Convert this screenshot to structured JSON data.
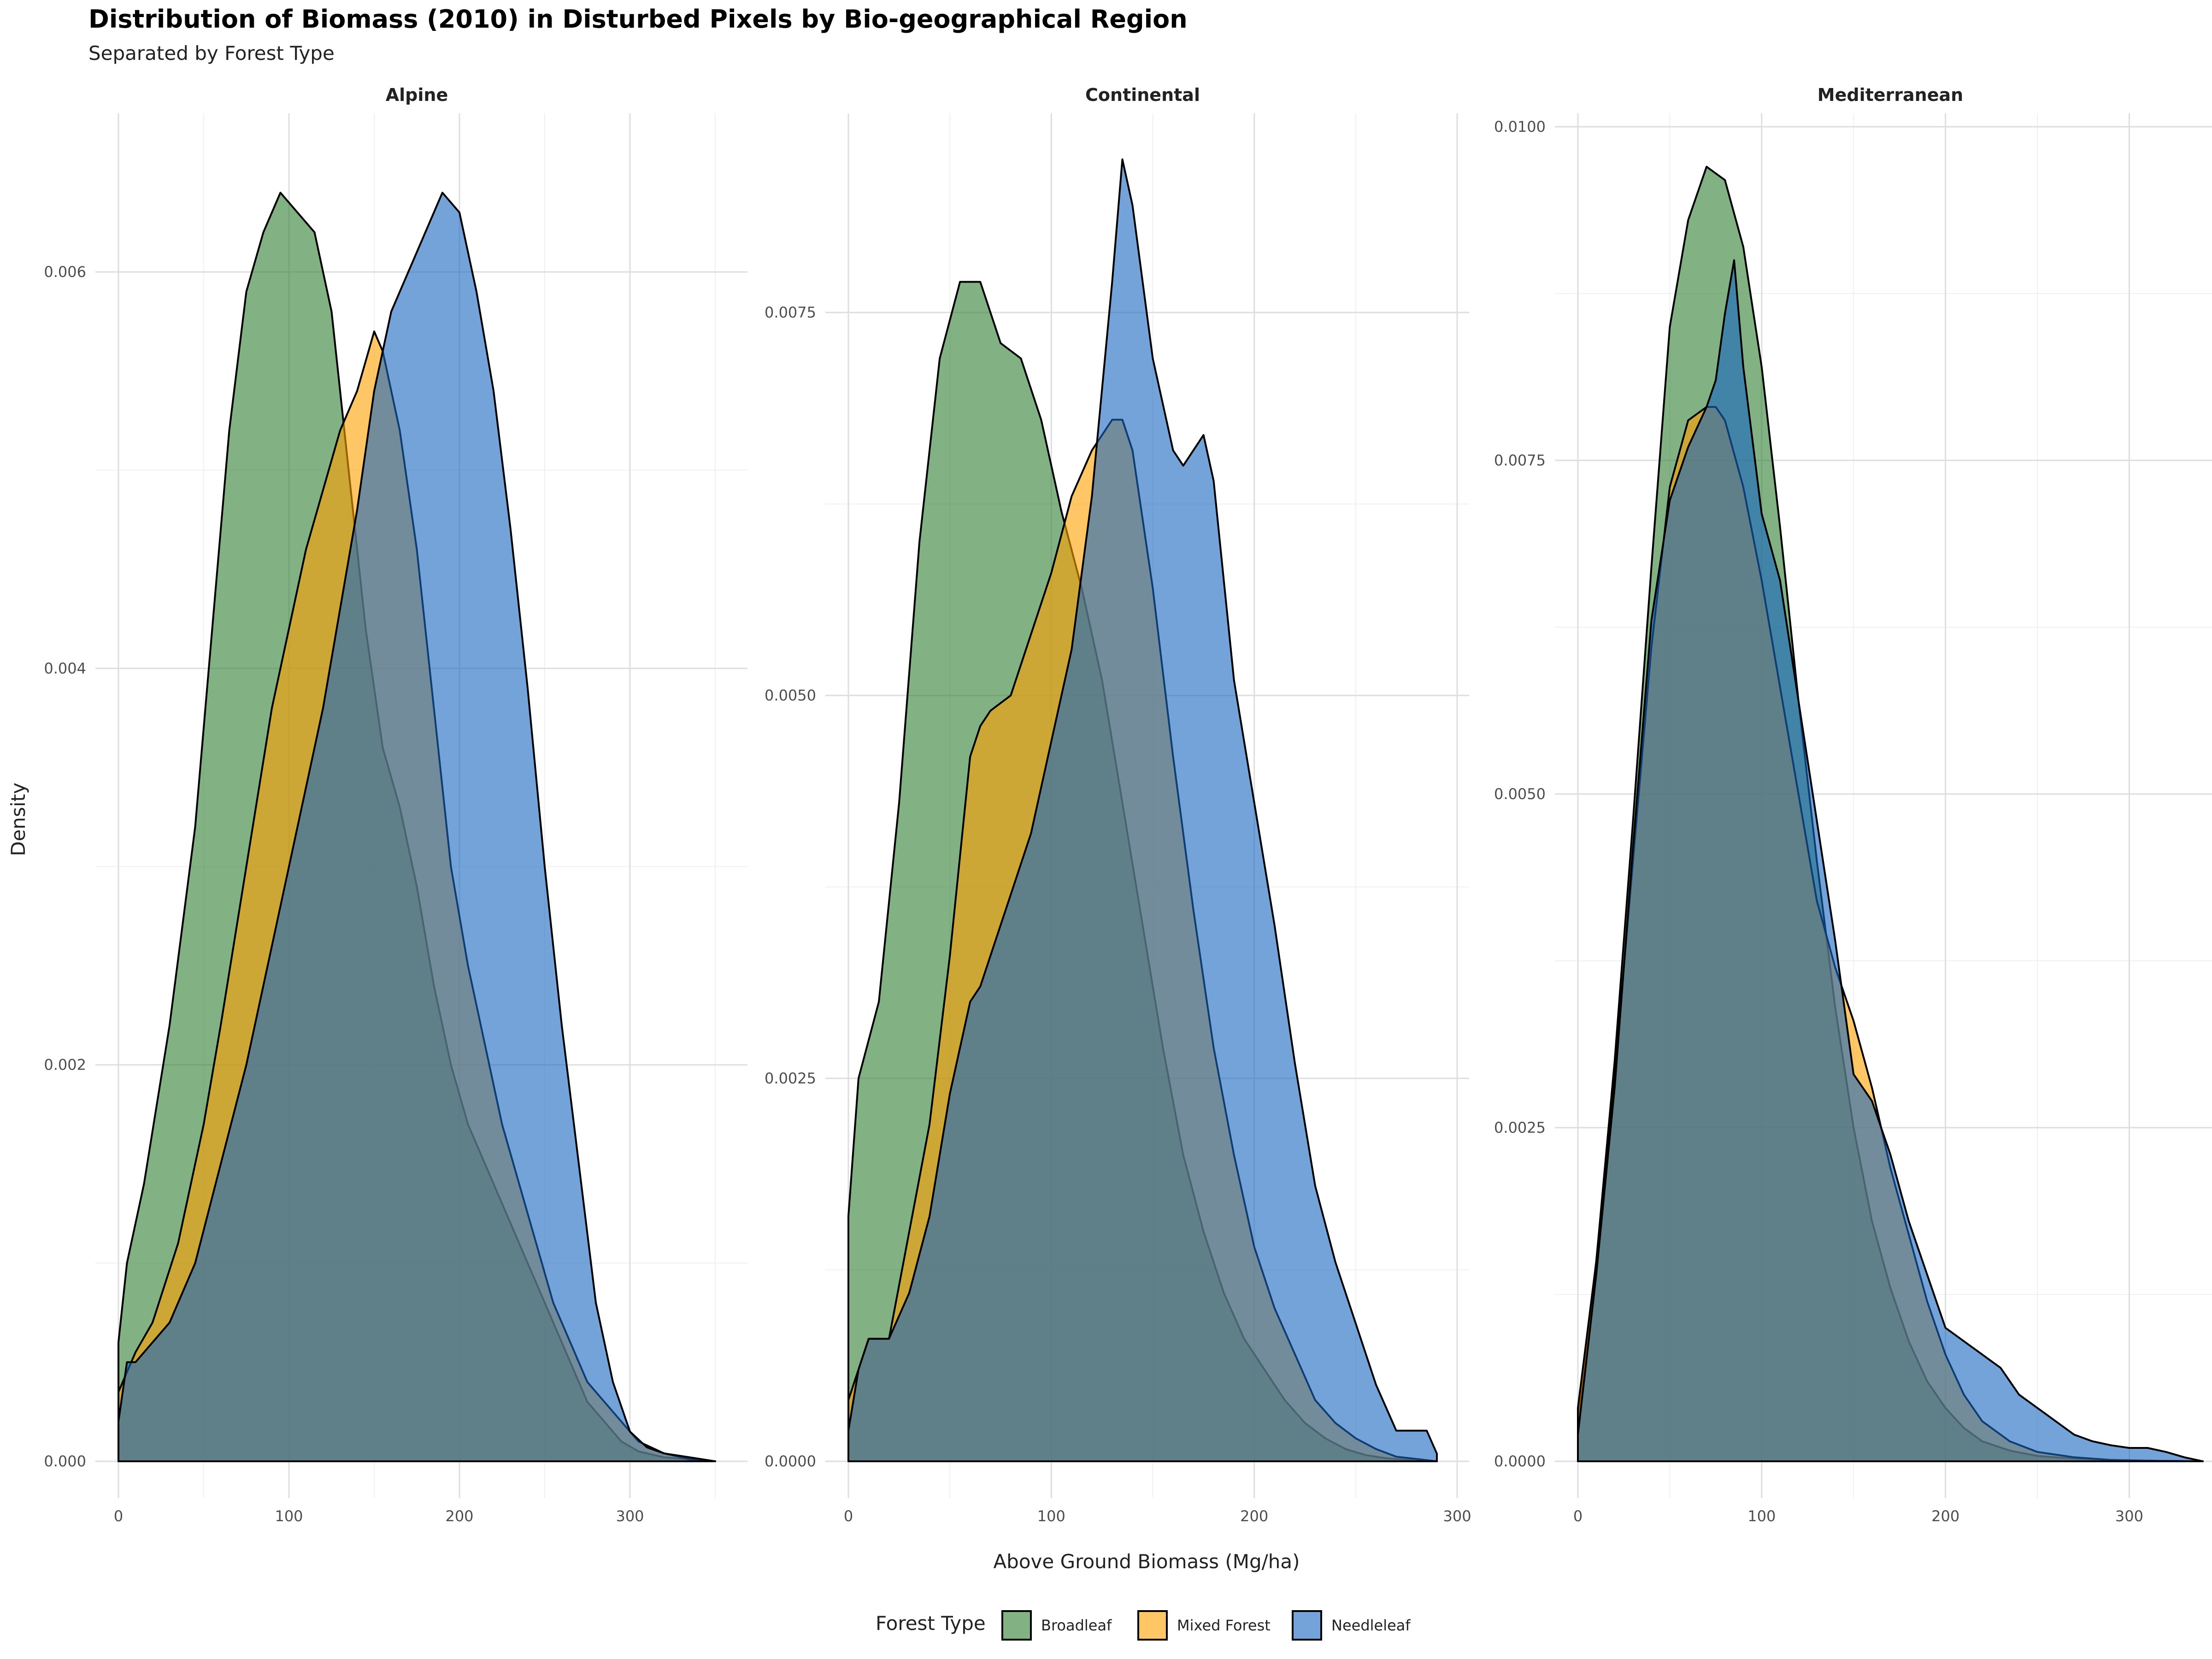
{
  "chart_data": {
    "type": "density",
    "title": "Distribution of Biomass (2010) in Disturbed Pixels by Bio-geographical Region",
    "subtitle": "Separated by Forest Type",
    "xlabel": "Above Ground Biomass (Mg/ha)",
    "ylabel": "Density",
    "legend": {
      "title": "Forest Type",
      "position": "bottom",
      "entries": [
        {
          "name": "Broadleaf",
          "color": "#2E7D32"
        },
        {
          "name": "Mixed Forest",
          "color": "#FFA000"
        },
        {
          "name": "Needleleaf",
          "color": "#1565C0"
        }
      ]
    },
    "fill_opacity": 0.6,
    "draw_order": [
      "Broadleaf",
      "Mixed Forest",
      "Needleleaf"
    ],
    "panels": [
      {
        "title": "Alpine",
        "xlim": [
          0,
          350
        ],
        "ylim": [
          0,
          0.0068
        ],
        "x_ticks": [
          0,
          100,
          200,
          300
        ],
        "x_tick_labels": [
          "0",
          "100",
          "200",
          "300"
        ],
        "y_ticks": [
          0,
          0.002,
          0.004,
          0.006
        ],
        "y_tick_labels": [
          "0.000",
          "0.002",
          "0.004",
          "0.006"
        ],
        "series": [
          {
            "name": "Broadleaf",
            "x": [
              0,
              5,
              15,
              30,
              45,
              55,
              65,
              75,
              85,
              95,
              105,
              115,
              125,
              135,
              145,
              155,
              165,
              175,
              185,
              195,
              205,
              215,
              225,
              235,
              245,
              255,
              265,
              275,
              285,
              295,
              305,
              320,
              335,
              350
            ],
            "y": [
              0.0006,
              0.001,
              0.0014,
              0.0022,
              0.0032,
              0.0042,
              0.0052,
              0.0059,
              0.0062,
              0.0064,
              0.0063,
              0.0062,
              0.0058,
              0.005,
              0.0042,
              0.0036,
              0.0033,
              0.0029,
              0.0024,
              0.002,
              0.0017,
              0.0015,
              0.0013,
              0.0011,
              0.0009,
              0.0007,
              0.0005,
              0.0003,
              0.0002,
              0.0001,
              5e-05,
              2e-05,
              1e-05,
              0
            ]
          },
          {
            "name": "Mixed Forest",
            "x": [
              0,
              10,
              20,
              35,
              50,
              60,
              75,
              90,
              100,
              110,
              120,
              130,
              140,
              150,
              155,
              165,
              175,
              185,
              195,
              205,
              215,
              225,
              235,
              245,
              255,
              265,
              275,
              285,
              295,
              305,
              320,
              335,
              350
            ],
            "y": [
              0.00035,
              0.00055,
              0.0007,
              0.0011,
              0.0017,
              0.0022,
              0.003,
              0.0038,
              0.0042,
              0.0046,
              0.0049,
              0.0052,
              0.0054,
              0.0057,
              0.0056,
              0.0052,
              0.0046,
              0.0038,
              0.003,
              0.0025,
              0.0021,
              0.0017,
              0.0014,
              0.0011,
              0.0008,
              0.0006,
              0.0004,
              0.0003,
              0.0002,
              0.0001,
              4e-05,
              1e-05,
              0
            ]
          },
          {
            "name": "Needleleaf",
            "x": [
              0,
              5,
              10,
              20,
              30,
              45,
              60,
              75,
              90,
              100,
              110,
              120,
              130,
              140,
              150,
              160,
              170,
              180,
              190,
              200,
              210,
              220,
              230,
              240,
              250,
              260,
              270,
              280,
              290,
              300,
              310,
              320,
              335,
              350
            ],
            "y": [
              0.0002,
              0.0005,
              0.0005,
              0.0006,
              0.0007,
              0.001,
              0.0015,
              0.002,
              0.0026,
              0.003,
              0.0034,
              0.0038,
              0.0043,
              0.0048,
              0.0054,
              0.0058,
              0.006,
              0.0062,
              0.0064,
              0.0063,
              0.0059,
              0.0054,
              0.0047,
              0.0039,
              0.003,
              0.0022,
              0.0015,
              0.0008,
              0.0004,
              0.00015,
              7e-05,
              4e-05,
              2e-05,
              0
            ]
          }
        ]
      },
      {
        "title": "Continental",
        "xlim": [
          0,
          290
        ],
        "ylim": [
          0,
          0.0088
        ],
        "x_ticks": [
          0,
          100,
          200,
          300
        ],
        "x_tick_labels": [
          "0",
          "100",
          "200",
          "300"
        ],
        "y_ticks": [
          0,
          0.0025,
          0.005,
          0.0075
        ],
        "y_tick_labels": [
          "0.0000",
          "0.0025",
          "0.0050",
          "0.0075"
        ],
        "series": [
          {
            "name": "Broadleaf",
            "x": [
              0,
              5,
              15,
              25,
              35,
              45,
              55,
              65,
              75,
              85,
              95,
              105,
              115,
              125,
              135,
              145,
              155,
              165,
              175,
              185,
              195,
              205,
              215,
              225,
              235,
              245,
              255,
              265,
              275,
              290
            ],
            "y": [
              0.0016,
              0.0025,
              0.003,
              0.0043,
              0.006,
              0.0072,
              0.0077,
              0.0077,
              0.0073,
              0.0072,
              0.0068,
              0.0062,
              0.0057,
              0.0051,
              0.0043,
              0.0035,
              0.0027,
              0.002,
              0.0015,
              0.0011,
              0.0008,
              0.0006,
              0.0004,
              0.00025,
              0.00015,
              8e-05,
              4e-05,
              2e-05,
              1e-05,
              0
            ]
          },
          {
            "name": "Mixed Forest",
            "x": [
              0,
              10,
              20,
              30,
              40,
              50,
              60,
              65,
              70,
              80,
              90,
              100,
              110,
              120,
              130,
              135,
              140,
              150,
              160,
              170,
              180,
              190,
              200,
              210,
              220,
              230,
              240,
              250,
              260,
              270,
              290
            ],
            "y": [
              0.0004,
              0.0008,
              0.0008,
              0.0015,
              0.0022,
              0.0033,
              0.0046,
              0.0048,
              0.0049,
              0.005,
              0.0054,
              0.0058,
              0.0063,
              0.0066,
              0.0068,
              0.0068,
              0.0066,
              0.0057,
              0.0046,
              0.0036,
              0.0027,
              0.002,
              0.0014,
              0.001,
              0.0007,
              0.0004,
              0.00025,
              0.00015,
              8e-05,
              3e-05,
              0
            ]
          },
          {
            "name": "Needleleaf",
            "x": [
              0,
              5,
              10,
              20,
              30,
              40,
              50,
              60,
              65,
              70,
              80,
              90,
              100,
              110,
              120,
              130,
              135,
              140,
              150,
              160,
              165,
              175,
              180,
              190,
              200,
              210,
              220,
              230,
              240,
              250,
              260,
              270,
              280,
              285,
              290
            ],
            "y": [
              0.0002,
              0.0006,
              0.0008,
              0.0008,
              0.0011,
              0.0016,
              0.0024,
              0.003,
              0.0031,
              0.0033,
              0.0037,
              0.0041,
              0.0047,
              0.0053,
              0.0063,
              0.0077,
              0.0085,
              0.0082,
              0.0072,
              0.0066,
              0.0065,
              0.0067,
              0.0064,
              0.0051,
              0.0043,
              0.0035,
              0.0026,
              0.0018,
              0.0013,
              0.0009,
              0.0005,
              0.0002,
              0.0002,
              0.0002,
              5e-05
            ]
          }
        ]
      },
      {
        "title": "Mediterranean",
        "xlim": [
          0,
          340
        ],
        "ylim": [
          0,
          0.0101
        ],
        "x_ticks": [
          0,
          100,
          200,
          300
        ],
        "x_tick_labels": [
          "0",
          "100",
          "200",
          "300"
        ],
        "y_ticks": [
          0,
          0.0025,
          0.005,
          0.0075,
          0.01
        ],
        "y_tick_labels": [
          "0.0000",
          "0.0025",
          "0.0050",
          "0.0075",
          "0.0100"
        ],
        "series": [
          {
            "name": "Broadleaf",
            "x": [
              0,
              10,
              20,
              30,
              40,
              45,
              50,
              60,
              70,
              80,
              90,
              100,
              110,
              120,
              130,
              140,
              150,
              160,
              170,
              180,
              190,
              200,
              210,
              220,
              235,
              250,
              270,
              290,
              310,
              340
            ],
            "y": [
              0.0003,
              0.0015,
              0.003,
              0.0048,
              0.0067,
              0.0076,
              0.0085,
              0.0093,
              0.0097,
              0.0096,
              0.0091,
              0.0082,
              0.007,
              0.0057,
              0.0045,
              0.0034,
              0.0025,
              0.0018,
              0.0013,
              0.0009,
              0.0006,
              0.0004,
              0.00025,
              0.00015,
              8e-05,
              4e-05,
              2e-05,
              1e-05,
              5e-06,
              0
            ]
          },
          {
            "name": "Mixed Forest",
            "x": [
              0,
              10,
              20,
              30,
              40,
              50,
              60,
              70,
              75,
              80,
              90,
              100,
              110,
              120,
              130,
              140,
              150,
              160,
              170,
              180,
              190,
              200,
              210,
              220,
              235,
              250,
              270,
              290,
              310,
              340
            ],
            "y": [
              0.0004,
              0.0015,
              0.0029,
              0.0045,
              0.0061,
              0.0073,
              0.0078,
              0.0079,
              0.0079,
              0.0078,
              0.0073,
              0.0066,
              0.0058,
              0.005,
              0.0042,
              0.0037,
              0.0033,
              0.0028,
              0.0022,
              0.0017,
              0.0012,
              0.0008,
              0.0005,
              0.0003,
              0.00015,
              7e-05,
              3e-05,
              1e-05,
              5e-06,
              0
            ]
          },
          {
            "name": "Needleleaf",
            "x": [
              0,
              10,
              20,
              30,
              40,
              50,
              60,
              70,
              75,
              80,
              85,
              90,
              100,
              110,
              120,
              130,
              140,
              150,
              160,
              170,
              180,
              190,
              200,
              210,
              220,
              230,
              240,
              250,
              260,
              270,
              280,
              290,
              300,
              310,
              320,
              330,
              340
            ],
            "y": [
              0.0002,
              0.0014,
              0.0028,
              0.0046,
              0.0063,
              0.0072,
              0.0076,
              0.0079,
              0.0081,
              0.0086,
              0.009,
              0.0082,
              0.0071,
              0.0066,
              0.0057,
              0.0048,
              0.0039,
              0.0029,
              0.0027,
              0.0023,
              0.0018,
              0.0014,
              0.001,
              0.0009,
              0.0008,
              0.0007,
              0.0005,
              0.0004,
              0.0003,
              0.0002,
              0.00015,
              0.00012,
              0.0001,
              0.0001,
              7e-05,
              3e-05,
              0
            ]
          }
        ]
      }
    ]
  }
}
